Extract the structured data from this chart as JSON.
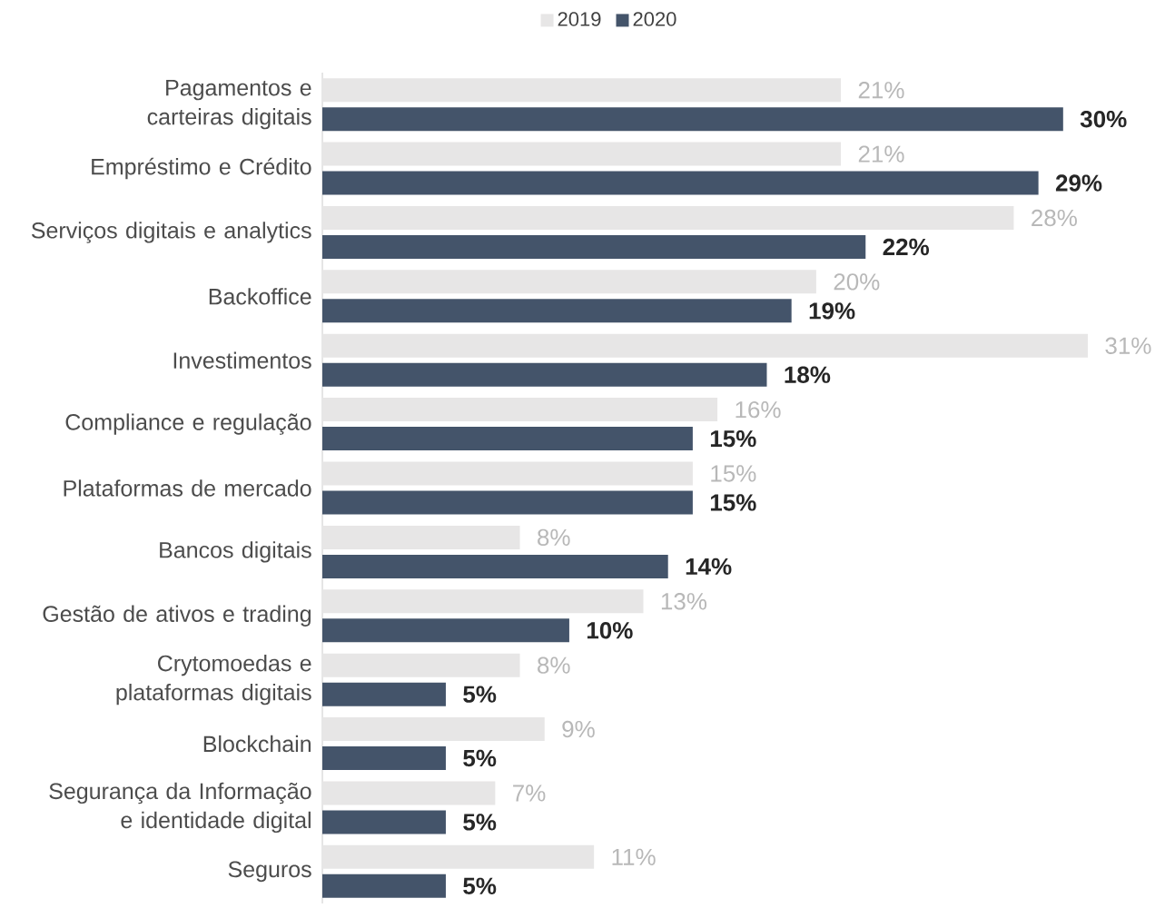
{
  "chart_data": {
    "type": "bar",
    "orientation": "horizontal",
    "legend": "top",
    "categories": [
      "Pagamentos e carteiras digitais",
      "Empréstimo e Crédito",
      "Serviços digitais e analytics",
      "Backoffice",
      "Investimentos",
      "Compliance e regulação",
      "Plataformas de mercado",
      "Bancos digitais",
      "Gestão de ativos e trading",
      "Crytomoedas e plataformas digitais",
      "Blockchain",
      "Segurança da Informação e identidade digital",
      "Seguros"
    ],
    "series": [
      {
        "name": "2019",
        "color": "#e7e6e6",
        "values": [
          21,
          21,
          28,
          20,
          31,
          16,
          15,
          8,
          13,
          8,
          9,
          7,
          11
        ],
        "value_labels": [
          "21%",
          "21%",
          "28%",
          "20%",
          "31%",
          "16%",
          "15%",
          "8%",
          "13%",
          "8%",
          "9%",
          "7%",
          "11%"
        ]
      },
      {
        "name": "2020",
        "color": "#44546a",
        "values": [
          30,
          29,
          22,
          19,
          18,
          15,
          15,
          14,
          10,
          5,
          5,
          5,
          5
        ],
        "value_labels": [
          "30%",
          "29%",
          "22%",
          "19%",
          "18%",
          "15%",
          "15%",
          "14%",
          "10%",
          "5%",
          "5%",
          "5%",
          "5%"
        ]
      }
    ]
  }
}
